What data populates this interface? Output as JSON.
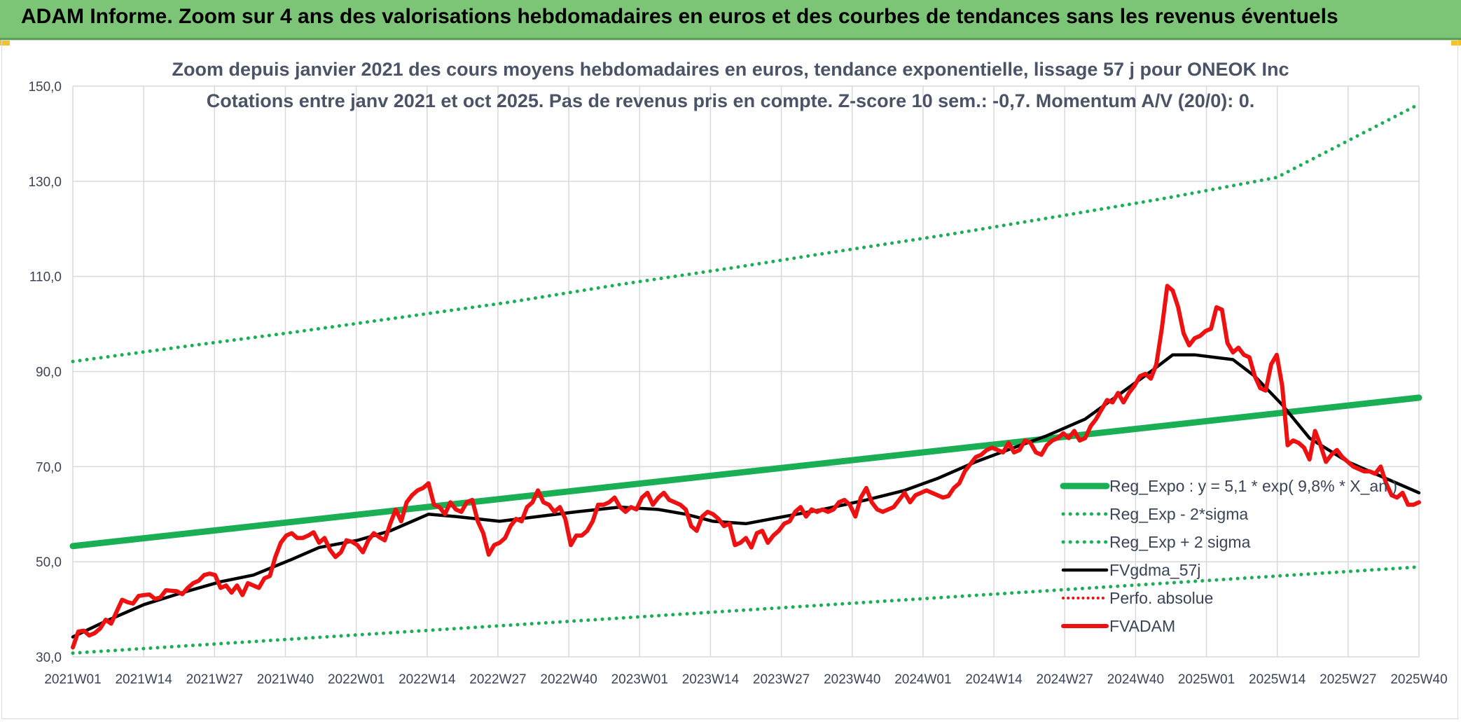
{
  "banner": {
    "title": "ADAM Informe. Zoom sur 4 ans des valorisations hebdomadaires en euros et des courbes de tendances sans les revenus éventuels"
  },
  "chart_data": {
    "type": "line",
    "title_line1": "Zoom depuis janvier 2021 des cours moyens hebdomadaires en euros, tendance exponentielle, lissage 57 j pour ONEOK Inc",
    "title_line2": "Cotations entre janv 2021 et oct 2025. Pas de revenus pris en compte. Z-score 10 sem.: -0,7. Momentum A/V (20/0): 0.",
    "xlabel": "",
    "ylabel": "",
    "ylim": [
      30,
      150
    ],
    "yticks": [
      "30,0",
      "50,0",
      "70,0",
      "90,0",
      "110,0",
      "130,0",
      "150,0"
    ],
    "ytick_values": [
      30,
      50,
      70,
      90,
      110,
      130,
      150
    ],
    "xticks": [
      "2021W01",
      "2021W14",
      "2021W27",
      "2021W40",
      "2022W01",
      "2022W14",
      "2022W27",
      "2022W40",
      "2023W01",
      "2023W14",
      "2023W27",
      "2023W40",
      "2024W01",
      "2024W14",
      "2024W27",
      "2024W40",
      "2025W01",
      "2025W14",
      "2025W27",
      "2025W40"
    ],
    "grid": true,
    "legend_position": "right",
    "colors": {
      "green": "#1aaf54",
      "black": "#000000",
      "red": "#ee1111",
      "grid": "#d9d9d9"
    },
    "series": [
      {
        "name": "Reg_Expo : y = 5,1 * exp( 9,8% *  X_an )",
        "style": "solid",
        "color": "#1aaf54",
        "points": [
          [
            0,
            53.3
          ],
          [
            246,
            84.5
          ]
        ]
      },
      {
        "name": "Reg_Exp - 2*sigma",
        "style": "dotted",
        "color": "#1aaf54",
        "points": [
          [
            0,
            30.8
          ],
          [
            246,
            48.9
          ]
        ]
      },
      {
        "name": "Reg_Exp + 2 sigma",
        "style": "dotted",
        "color": "#1aaf54",
        "points": [
          [
            0,
            92.1
          ],
          [
            20,
            95.2
          ],
          [
            40,
            98.2
          ],
          [
            60,
            101.4
          ],
          [
            80,
            104.6
          ],
          [
            100,
            108.3
          ],
          [
            120,
            111.7
          ],
          [
            140,
            115.3
          ],
          [
            160,
            118.8
          ],
          [
            180,
            122.6
          ],
          [
            200,
            126.5
          ],
          [
            220,
            130.8
          ],
          [
            246,
            146.2
          ]
        ]
      },
      {
        "name": "FVgdma_57j",
        "style": "solid",
        "color": "#000000",
        "points": [
          [
            0,
            34.2
          ],
          [
            6,
            37.5
          ],
          [
            13,
            41.0
          ],
          [
            20,
            43.5
          ],
          [
            27,
            45.8
          ],
          [
            33,
            47.2
          ],
          [
            40,
            50.5
          ],
          [
            45,
            53.0
          ],
          [
            52,
            54.5
          ],
          [
            58,
            56.5
          ],
          [
            65,
            60.0
          ],
          [
            70,
            59.5
          ],
          [
            78,
            58.5
          ],
          [
            85,
            59.5
          ],
          [
            92,
            60.5
          ],
          [
            100,
            61.5
          ],
          [
            107,
            61.0
          ],
          [
            112,
            60.0
          ],
          [
            117,
            58.5
          ],
          [
            123,
            58.0
          ],
          [
            130,
            59.5
          ],
          [
            137,
            61.0
          ],
          [
            145,
            63.0
          ],
          [
            152,
            65.0
          ],
          [
            158,
            67.5
          ],
          [
            165,
            71.0
          ],
          [
            172,
            74.0
          ],
          [
            178,
            76.5
          ],
          [
            185,
            80.0
          ],
          [
            191,
            85.0
          ],
          [
            197,
            90.0
          ],
          [
            201,
            93.5
          ],
          [
            205,
            93.5
          ],
          [
            212,
            92.5
          ],
          [
            216,
            89.0
          ],
          [
            221,
            83.0
          ],
          [
            226,
            76.0
          ],
          [
            233,
            71.0
          ],
          [
            240,
            67.5
          ],
          [
            246,
            64.5
          ]
        ]
      },
      {
        "name": "Perfo. absolue",
        "style": "dotted",
        "color": "#ee1111",
        "points": []
      },
      {
        "name": "FVADAM",
        "style": "solid",
        "color": "#ee1111",
        "points": [
          [
            0,
            32.0
          ],
          [
            1,
            35.3
          ],
          [
            2,
            35.5
          ],
          [
            3,
            34.5
          ],
          [
            4,
            35.0
          ],
          [
            5,
            36.0
          ],
          [
            6,
            37.8
          ],
          [
            7,
            37.0
          ],
          [
            8,
            39.5
          ],
          [
            9,
            42.0
          ],
          [
            10,
            41.5
          ],
          [
            11,
            41.2
          ],
          [
            12,
            42.8
          ],
          [
            13,
            43.0
          ],
          [
            14,
            43.1
          ],
          [
            15,
            42.2
          ],
          [
            16,
            42.5
          ],
          [
            17,
            44.0
          ],
          [
            18,
            43.9
          ],
          [
            19,
            43.8
          ],
          [
            20,
            43.2
          ],
          [
            21,
            44.5
          ],
          [
            22,
            45.5
          ],
          [
            23,
            46.0
          ],
          [
            24,
            47.2
          ],
          [
            25,
            47.5
          ],
          [
            26,
            47.2
          ],
          [
            27,
            44.5
          ],
          [
            28,
            45.0
          ],
          [
            29,
            43.5
          ],
          [
            30,
            45.0
          ],
          [
            31,
            43.0
          ],
          [
            32,
            45.5
          ],
          [
            33,
            45.0
          ],
          [
            34,
            44.5
          ],
          [
            35,
            46.5
          ],
          [
            36,
            47.0
          ],
          [
            37,
            51.0
          ],
          [
            38,
            54.0
          ],
          [
            39,
            55.5
          ],
          [
            40,
            56.0
          ],
          [
            41,
            55.0
          ],
          [
            42,
            55.0
          ],
          [
            43,
            55.5
          ],
          [
            44,
            56.2
          ],
          [
            45,
            54.0
          ],
          [
            46,
            55.0
          ],
          [
            47,
            52.5
          ],
          [
            48,
            51.0
          ],
          [
            49,
            52.0
          ],
          [
            50,
            54.5
          ],
          [
            51,
            54.2
          ],
          [
            52,
            53.5
          ],
          [
            53,
            52.0
          ],
          [
            54,
            54.5
          ],
          [
            55,
            56.0
          ],
          [
            56,
            55.2
          ],
          [
            57,
            54.5
          ],
          [
            58,
            58.0
          ],
          [
            59,
            61.0
          ],
          [
            60,
            58.5
          ],
          [
            61,
            62.5
          ],
          [
            62,
            64.0
          ],
          [
            63,
            65.0
          ],
          [
            64,
            65.5
          ],
          [
            65,
            66.5
          ],
          [
            66,
            62.0
          ],
          [
            67,
            61.5
          ],
          [
            68,
            60.0
          ],
          [
            69,
            62.5
          ],
          [
            70,
            61.0
          ],
          [
            71,
            60.5
          ],
          [
            72,
            62.5
          ],
          [
            73,
            63.0
          ],
          [
            74,
            58.5
          ],
          [
            75,
            56.0
          ],
          [
            76,
            51.5
          ],
          [
            77,
            53.5
          ],
          [
            78,
            54.0
          ],
          [
            79,
            55.0
          ],
          [
            80,
            57.5
          ],
          [
            81,
            59.0
          ],
          [
            82,
            58.5
          ],
          [
            83,
            61.5
          ],
          [
            84,
            62.5
          ],
          [
            85,
            65.0
          ],
          [
            86,
            62.5
          ],
          [
            87,
            62.0
          ],
          [
            88,
            60.5
          ],
          [
            89,
            61.5
          ],
          [
            90,
            59.0
          ],
          [
            91,
            53.5
          ],
          [
            92,
            55.5
          ],
          [
            93,
            55.5
          ],
          [
            94,
            56.5
          ],
          [
            95,
            58.5
          ],
          [
            96,
            62.0
          ],
          [
            97,
            62.0
          ],
          [
            98,
            62.5
          ],
          [
            99,
            63.5
          ],
          [
            100,
            61.5
          ],
          [
            101,
            60.5
          ],
          [
            102,
            61.5
          ],
          [
            103,
            61.0
          ],
          [
            104,
            63.5
          ],
          [
            105,
            64.5
          ],
          [
            106,
            62.0
          ],
          [
            107,
            63.5
          ],
          [
            108,
            64.5
          ],
          [
            109,
            63.0
          ],
          [
            110,
            62.5
          ],
          [
            111,
            62.0
          ],
          [
            112,
            61.0
          ],
          [
            113,
            57.5
          ],
          [
            114,
            56.5
          ],
          [
            115,
            59.5
          ],
          [
            116,
            60.5
          ],
          [
            117,
            60.0
          ],
          [
            118,
            59.0
          ],
          [
            119,
            57.5
          ],
          [
            120,
            58.0
          ],
          [
            121,
            53.5
          ],
          [
            122,
            54.0
          ],
          [
            123,
            55.0
          ],
          [
            124,
            53.0
          ],
          [
            125,
            56.0
          ],
          [
            126,
            56.5
          ],
          [
            127,
            54.0
          ],
          [
            128,
            55.5
          ],
          [
            129,
            56.5
          ],
          [
            130,
            58.0
          ],
          [
            131,
            58.5
          ],
          [
            132,
            60.5
          ],
          [
            133,
            61.5
          ],
          [
            134,
            59.5
          ],
          [
            135,
            61.0
          ],
          [
            136,
            60.5
          ],
          [
            137,
            61.0
          ],
          [
            138,
            60.5
          ],
          [
            139,
            61.0
          ],
          [
            140,
            62.5
          ],
          [
            141,
            63.0
          ],
          [
            142,
            62.0
          ],
          [
            143,
            59.5
          ],
          [
            144,
            63.5
          ],
          [
            145,
            65.5
          ],
          [
            146,
            62.5
          ],
          [
            147,
            61.0
          ],
          [
            148,
            60.5
          ],
          [
            149,
            61.0
          ],
          [
            150,
            61.5
          ],
          [
            151,
            63.0
          ],
          [
            152,
            64.5
          ],
          [
            153,
            62.5
          ],
          [
            154,
            64.0
          ],
          [
            155,
            64.5
          ],
          [
            156,
            65.0
          ],
          [
            157,
            64.5
          ],
          [
            158,
            64.0
          ],
          [
            159,
            63.5
          ],
          [
            160,
            63.8
          ],
          [
            161,
            65.5
          ],
          [
            162,
            66.5
          ],
          [
            163,
            69.0
          ],
          [
            164,
            70.5
          ],
          [
            165,
            72.0
          ],
          [
            166,
            72.5
          ],
          [
            167,
            73.5
          ],
          [
            168,
            74.0
          ],
          [
            169,
            73.5
          ],
          [
            170,
            73.0
          ],
          [
            171,
            75.0
          ],
          [
            172,
            73.0
          ],
          [
            173,
            73.5
          ],
          [
            174,
            75.5
          ],
          [
            175,
            75.0
          ],
          [
            176,
            73.0
          ],
          [
            177,
            72.5
          ],
          [
            178,
            74.5
          ],
          [
            179,
            75.5
          ],
          [
            180,
            76.0
          ],
          [
            181,
            77.0
          ],
          [
            182,
            76.0
          ],
          [
            183,
            77.5
          ],
          [
            184,
            75.5
          ],
          [
            185,
            76.0
          ],
          [
            186,
            78.5
          ],
          [
            187,
            80.0
          ],
          [
            188,
            82.0
          ],
          [
            189,
            84.0
          ],
          [
            190,
            83.5
          ],
          [
            191,
            85.5
          ],
          [
            192,
            83.5
          ],
          [
            193,
            85.5
          ],
          [
            194,
            87.0
          ],
          [
            195,
            89.0
          ],
          [
            196,
            89.5
          ],
          [
            197,
            88.5
          ],
          [
            198,
            91.5
          ],
          [
            199,
            99.0
          ],
          [
            200,
            108.0
          ],
          [
            201,
            107.0
          ],
          [
            202,
            103.5
          ],
          [
            203,
            98.0
          ],
          [
            204,
            95.5
          ],
          [
            205,
            97.0
          ],
          [
            206,
            97.5
          ],
          [
            207,
            98.5
          ],
          [
            208,
            99.0
          ],
          [
            209,
            103.5
          ],
          [
            210,
            103.0
          ],
          [
            211,
            96.0
          ],
          [
            212,
            94.0
          ],
          [
            213,
            95.0
          ],
          [
            214,
            93.5
          ],
          [
            215,
            93.0
          ],
          [
            216,
            89.0
          ],
          [
            217,
            86.5
          ],
          [
            218,
            86.0
          ],
          [
            219,
            91.5
          ],
          [
            220,
            93.5
          ],
          [
            221,
            87.0
          ],
          [
            222,
            74.5
          ],
          [
            223,
            75.5
          ],
          [
            224,
            75.0
          ],
          [
            225,
            74.0
          ],
          [
            226,
            71.5
          ],
          [
            227,
            77.5
          ],
          [
            228,
            74.5
          ],
          [
            229,
            71.0
          ],
          [
            230,
            72.5
          ],
          [
            231,
            73.5
          ],
          [
            232,
            72.0
          ],
          [
            233,
            71.0
          ],
          [
            234,
            70.0
          ],
          [
            235,
            69.5
          ],
          [
            236,
            69.0
          ],
          [
            237,
            69.0
          ],
          [
            238,
            68.5
          ],
          [
            239,
            70.0
          ],
          [
            240,
            66.5
          ],
          [
            241,
            64.0
          ],
          [
            242,
            63.5
          ],
          [
            243,
            64.5
          ],
          [
            244,
            62.0
          ],
          [
            245,
            62.0
          ],
          [
            246,
            62.5
          ]
        ]
      }
    ]
  }
}
